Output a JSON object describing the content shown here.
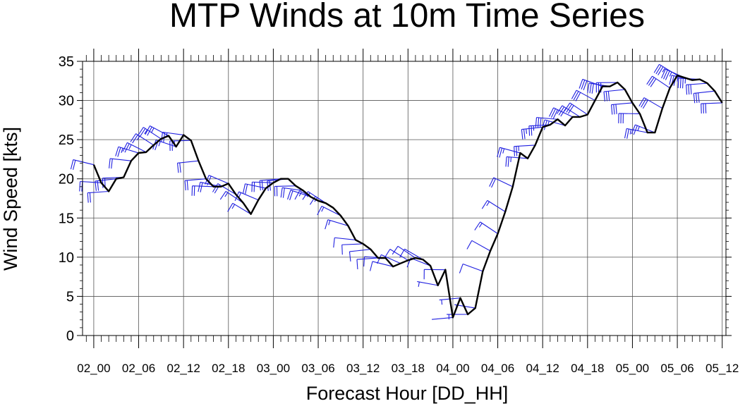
{
  "chart_data": {
    "type": "line",
    "title": "MTP Winds at 10m Time Series",
    "xlabel": "Forecast Hour [DD_HH]",
    "ylabel": "Wind Speed [kts]",
    "ylim": [
      0,
      35
    ],
    "y_ticks": [
      0,
      5,
      10,
      15,
      20,
      25,
      30,
      35
    ],
    "x_unit": "hours",
    "xlim": [
      -1.5,
      84.5
    ],
    "x_tick_hours": [
      0,
      6,
      12,
      18,
      24,
      30,
      36,
      42,
      48,
      54,
      60,
      66,
      72,
      78,
      84
    ],
    "x_tick_labels": [
      "02_00",
      "02_06",
      "02_12",
      "02_18",
      "03_00",
      "03_06",
      "03_12",
      "03_18",
      "04_00",
      "04_06",
      "04_12",
      "04_18",
      "05_00",
      "05_06",
      "05_12"
    ],
    "grid": true,
    "line_color": "#000000",
    "barb_color": "#1f1fe0",
    "series": [
      {
        "x": [
          0,
          1,
          2,
          3,
          4,
          5,
          6,
          7,
          8,
          9,
          10,
          11,
          12,
          13,
          14,
          15,
          16,
          17,
          18,
          19,
          20,
          21,
          22,
          23,
          24,
          25,
          26,
          27,
          28,
          29,
          30,
          31,
          32,
          33,
          34,
          35,
          36,
          37,
          38,
          39,
          40,
          41,
          42,
          43,
          44,
          45,
          46,
          47,
          48,
          49,
          50,
          51,
          52,
          53,
          54,
          55,
          56,
          57,
          58,
          59,
          60,
          61,
          62,
          63,
          64,
          65,
          66,
          67,
          68,
          69,
          70,
          71,
          72,
          73,
          74,
          75,
          76,
          77,
          78,
          79,
          80,
          81,
          82,
          83,
          84
        ],
        "y": [
          21.8,
          19.5,
          18.4,
          20.0,
          20.2,
          22.3,
          23.3,
          23.4,
          24.3,
          25.1,
          25.5,
          24.1,
          25.6,
          24.9,
          22.3,
          20.0,
          19.0,
          19.0,
          19.4,
          18.0,
          16.9,
          15.5,
          17.3,
          18.8,
          19.5,
          20.0,
          20.0,
          19.1,
          18.5,
          17.7,
          17.2,
          16.9,
          16.3,
          15.3,
          14.0,
          12.2,
          11.7,
          11.0,
          9.9,
          9.9,
          8.8,
          9.2,
          9.6,
          9.9,
          9.7,
          8.9,
          6.4,
          8.4,
          2.3,
          4.8,
          2.7,
          3.5,
          8.2,
          10.8,
          13.0,
          15.8,
          19.0,
          23.3,
          22.6,
          24.3,
          26.6,
          26.9,
          27.6,
          26.8,
          27.9,
          27.9,
          28.2,
          30.0,
          31.8,
          31.8,
          32.3,
          31.4,
          29.7,
          28.3,
          25.9,
          25.9,
          29.0,
          31.6,
          33.2,
          32.9,
          32.6,
          32.7,
          32.2,
          31.2,
          29.7
        ]
      }
    ]
  }
}
